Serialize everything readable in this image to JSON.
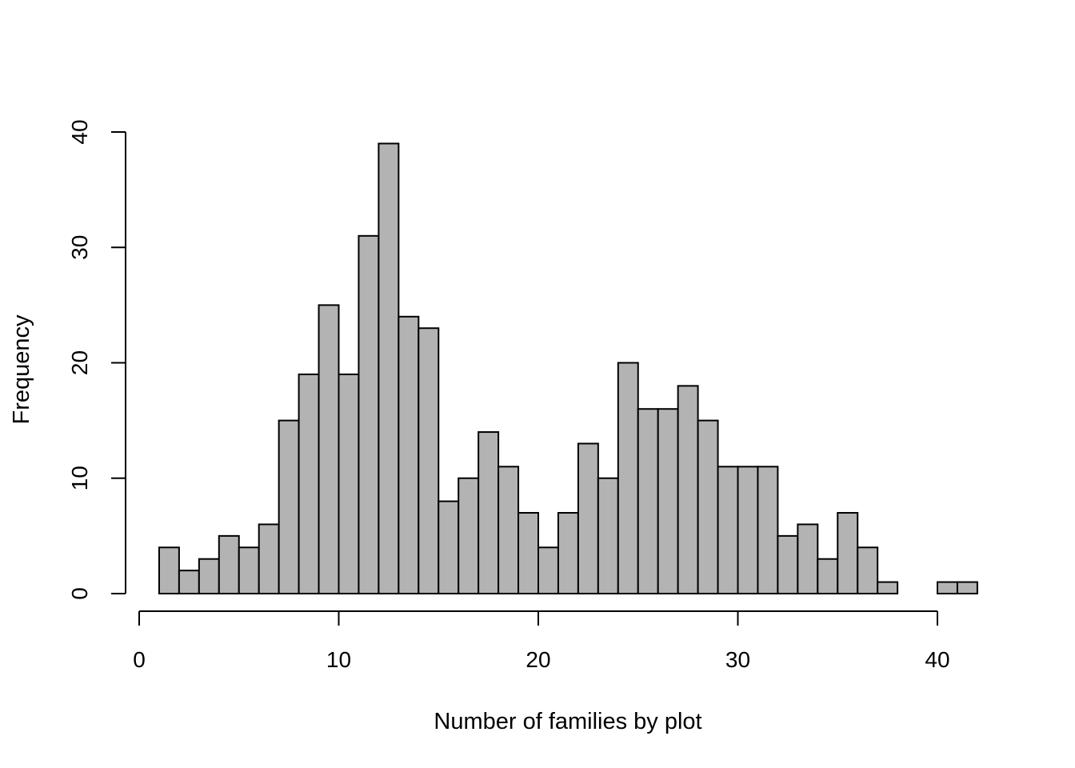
{
  "chart_data": {
    "type": "bar",
    "title": "",
    "xlabel": "Number of families by plot",
    "ylabel": "Frequency",
    "bin_width": 1,
    "bin_edges_start": 1,
    "values": [
      4,
      2,
      3,
      5,
      4,
      6,
      15,
      19,
      25,
      19,
      31,
      39,
      24,
      23,
      8,
      10,
      14,
      11,
      7,
      4,
      7,
      13,
      10,
      20,
      16,
      16,
      18,
      15,
      11,
      11,
      11,
      5,
      6,
      3,
      7,
      4,
      1,
      0,
      0,
      1,
      1
    ],
    "xlim": [
      0,
      42
    ],
    "ylim": [
      0,
      40
    ],
    "x_ticks": [
      "0",
      "10",
      "20",
      "30",
      "40"
    ],
    "y_ticks": [
      "0",
      "10",
      "20",
      "30",
      "40"
    ],
    "bar_color": "#b3b3b3",
    "grid": false,
    "legend": "none"
  }
}
